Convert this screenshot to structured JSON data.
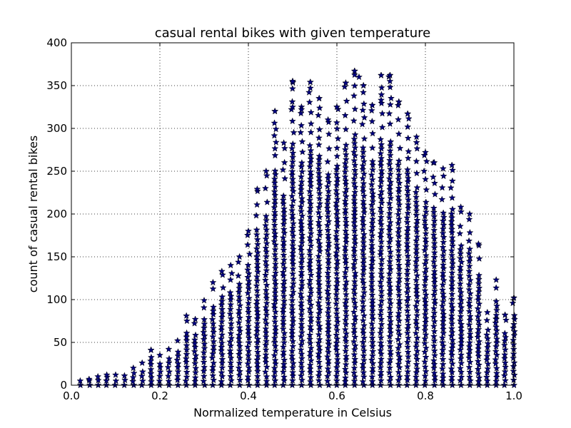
{
  "chart_data": {
    "type": "scatter",
    "title": "casual rental bikes with given temperature",
    "xlabel": "Normalized temperature in Celsius",
    "ylabel": "count of casual rental bikes",
    "xlim": [
      0.0,
      1.0
    ],
    "ylim": [
      0,
      400
    ],
    "xticks": [
      0.0,
      0.2,
      0.4,
      0.6,
      0.8,
      1.0
    ],
    "xtick_labels": [
      "0.0",
      "0.2",
      "0.4",
      "0.6",
      "0.8",
      "1.0"
    ],
    "yticks": [
      0,
      50,
      100,
      150,
      200,
      250,
      300,
      350,
      400
    ],
    "ytick_labels": [
      "0",
      "50",
      "100",
      "150",
      "200",
      "250",
      "300",
      "350",
      "400"
    ],
    "grid": true,
    "marker": "star",
    "marker_color": "#00007f",
    "series": [
      {
        "x_values": [
          0.02,
          0.04,
          0.06,
          0.08,
          0.1,
          0.12,
          0.14,
          0.16,
          0.18,
          0.2,
          0.22,
          0.24,
          0.26,
          0.28,
          0.3,
          0.32,
          0.34,
          0.36,
          0.38,
          0.4,
          0.42,
          0.44,
          0.46,
          0.48,
          0.5,
          0.52,
          0.54,
          0.56,
          0.58,
          0.6,
          0.62,
          0.64,
          0.66,
          0.68,
          0.7,
          0.72,
          0.74,
          0.76,
          0.78,
          0.8,
          0.82,
          0.84,
          0.86,
          0.88,
          0.9,
          0.92,
          0.94,
          0.96,
          0.98,
          1.0
        ],
        "column_max_y": [
          5,
          7,
          10,
          12,
          12,
          11,
          20,
          26,
          41,
          35,
          42,
          52,
          81,
          77,
          99,
          120,
          133,
          140,
          150,
          180,
          229,
          250,
          320,
          283,
          355,
          325,
          354,
          335,
          310,
          325,
          353,
          367,
          350,
          327,
          362,
          362,
          331,
          317,
          290,
          272,
          260,
          253,
          257,
          208,
          200,
          165,
          85,
          123,
          82,
          102
        ],
        "outliers": [
          {
            "x": 0.5,
            "y": 355
          },
          {
            "x": 0.54,
            "y": 354
          },
          {
            "x": 0.54,
            "y": 347
          },
          {
            "x": 0.56,
            "y": 335
          },
          {
            "x": 0.46,
            "y": 320
          },
          {
            "x": 0.52,
            "y": 322
          },
          {
            "x": 0.64,
            "y": 367
          },
          {
            "x": 0.65,
            "y": 360
          },
          {
            "x": 0.62,
            "y": 353
          },
          {
            "x": 0.66,
            "y": 350
          },
          {
            "x": 0.7,
            "y": 362
          },
          {
            "x": 0.72,
            "y": 362
          },
          {
            "x": 0.72,
            "y": 355
          },
          {
            "x": 0.68,
            "y": 327
          },
          {
            "x": 0.74,
            "y": 331
          },
          {
            "x": 0.5,
            "y": 325
          },
          {
            "x": 0.6,
            "y": 325
          },
          {
            "x": 0.7,
            "y": 333
          },
          {
            "x": 0.76,
            "y": 317
          },
          {
            "x": 1.0,
            "y": 102
          },
          {
            "x": 0.98,
            "y": 82
          },
          {
            "x": 0.96,
            "y": 77
          },
          {
            "x": 0.18,
            "y": 41
          }
        ]
      }
    ]
  }
}
